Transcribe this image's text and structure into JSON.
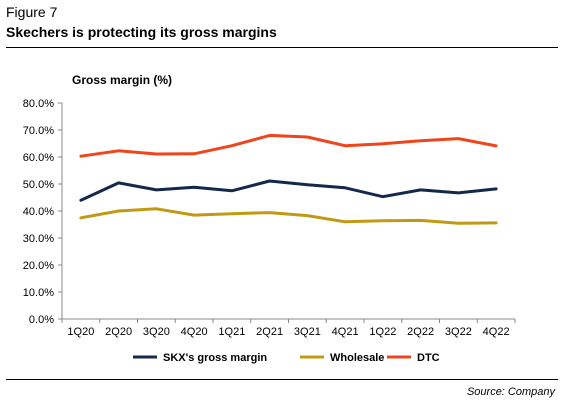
{
  "figure_label": "Figure 7",
  "title": "Skechers is protecting its gross margins",
  "source": "Source: Company",
  "chart_data": {
    "type": "line",
    "ylabel": "Gross margin (%)",
    "xlabel": "",
    "categories": [
      "1Q20",
      "2Q20",
      "3Q20",
      "4Q20",
      "1Q21",
      "2Q21",
      "3Q21",
      "4Q21",
      "1Q22",
      "2Q22",
      "3Q22",
      "4Q22"
    ],
    "ylim": [
      0,
      80
    ],
    "ytick_values": [
      0,
      10,
      20,
      30,
      40,
      50,
      60,
      70,
      80
    ],
    "ytick_labels": [
      "0.0%",
      "10.0%",
      "20.0%",
      "30.0%",
      "40.0%",
      "50.0%",
      "60.0%",
      "70.0%",
      "80.0%"
    ],
    "grid": false,
    "legend_position": "bottom",
    "series": [
      {
        "name": "SKX's gross margin",
        "color": "#14284B",
        "values": [
          44.0,
          50.4,
          47.8,
          48.8,
          47.5,
          51.1,
          49.7,
          48.6,
          45.3,
          47.8,
          46.7,
          48.2
        ]
      },
      {
        "name": "Wholesale",
        "color": "#C09A14",
        "values": [
          37.5,
          40.0,
          40.8,
          38.5,
          39.0,
          39.4,
          38.3,
          36.0,
          36.4,
          36.5,
          35.5,
          35.6
        ]
      },
      {
        "name": "DTC",
        "color": "#F0441C",
        "values": [
          60.3,
          62.3,
          61.1,
          61.2,
          64.2,
          68.0,
          67.4,
          64.2,
          64.9,
          66.0,
          66.8,
          64.1
        ]
      }
    ]
  }
}
